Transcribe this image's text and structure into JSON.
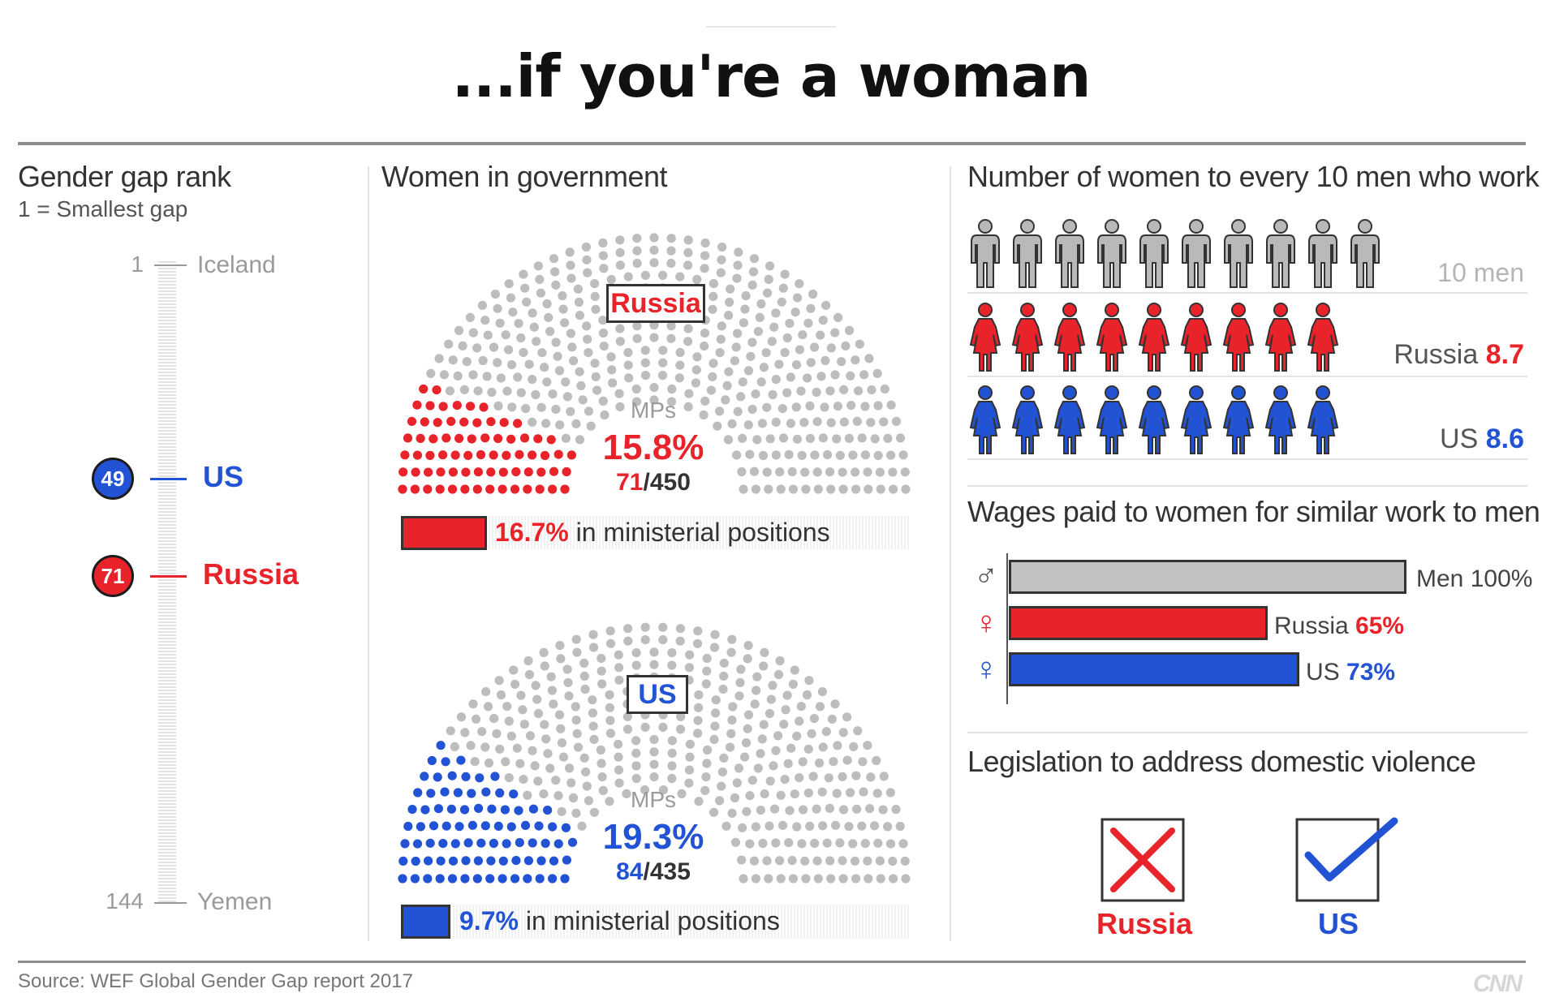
{
  "title": "...if you're a woman",
  "colors": {
    "red": "#e8232a",
    "blue": "#2153d4",
    "gray": "#bdbdbd"
  },
  "rank": {
    "heading": "Gender gap rank",
    "subheading": "1 = Smallest gap",
    "top": {
      "rank": "1",
      "country": "Iceland"
    },
    "bottom": {
      "rank": "144",
      "country": "Yemen"
    },
    "markers": [
      {
        "rank": "49",
        "country": "US",
        "color": "blue"
      },
      {
        "rank": "71",
        "country": "Russia",
        "color": "red"
      }
    ]
  },
  "government": {
    "heading": "Women in government",
    "russia": {
      "label": "Russia",
      "mps_label": "MPs",
      "pct": "15.8%",
      "women": "71",
      "total": "/450",
      "minister_pct": "16.7%",
      "minister_text": "in ministerial positions"
    },
    "us": {
      "label": "US",
      "mps_label": "MPs",
      "pct": "19.3%",
      "women": "84",
      "total": "/435",
      "minister_pct": "9.7%",
      "minister_text": "in ministerial positions"
    }
  },
  "workers": {
    "heading": "Number of women to every 10 men who work",
    "men_label": "10 men",
    "russia_label": "Russia",
    "russia_value": "8.7",
    "us_label": "US",
    "us_value": "8.6"
  },
  "wages": {
    "heading": "Wages paid to women for similar work to men",
    "rows": [
      {
        "symbol": "♂",
        "label": "Men",
        "value": "100%"
      },
      {
        "symbol": "♀",
        "label": "Russia",
        "value": "65%"
      },
      {
        "symbol": "♀",
        "label": "US",
        "value": "73%"
      }
    ]
  },
  "legislation": {
    "heading": "Legislation to address domestic violence",
    "russia_label": "Russia",
    "us_label": "US"
  },
  "source": "Source: WEF Global Gender Gap report 2017",
  "logo": "CNN",
  "chart_data": [
    {
      "type": "bar",
      "title": "Wages paid to women for similar work to men",
      "categories": [
        "Men",
        "Russia",
        "US"
      ],
      "values": [
        100,
        65,
        73
      ],
      "ylim": [
        0,
        100
      ]
    },
    {
      "type": "bar",
      "title": "Number of women to every 10 men who work",
      "categories": [
        "10 men",
        "Russia",
        "US"
      ],
      "values": [
        10,
        8.7,
        8.6
      ]
    },
    {
      "type": "pie",
      "title": "Women in government",
      "series": [
        {
          "name": "Russia",
          "values": [
            71,
            379
          ]
        },
        {
          "name": "US",
          "values": [
            84,
            351
          ]
        }
      ],
      "ministerial_pct": {
        "Russia": 16.7,
        "US": 9.7
      }
    },
    {
      "type": "scatter",
      "title": "Gender gap rank",
      "categories": [
        "Iceland",
        "US",
        "Russia",
        "Yemen"
      ],
      "values": [
        1,
        49,
        71,
        144
      ]
    }
  ]
}
